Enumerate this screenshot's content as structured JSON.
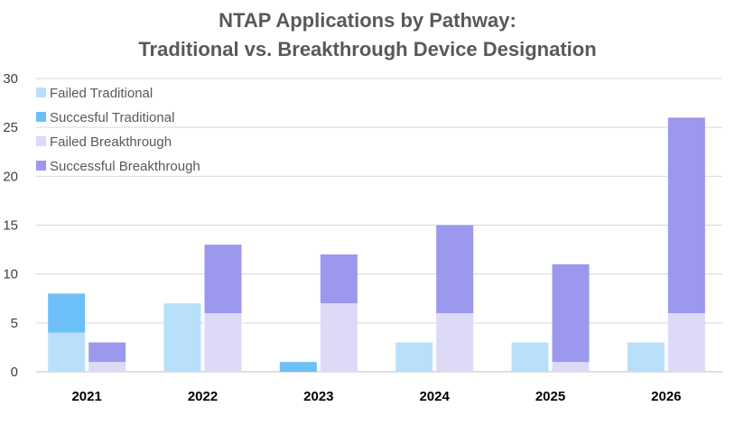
{
  "chart_data": {
    "type": "bar",
    "title": [
      "NTAP Applications by Pathway:",
      "Traditional vs. Breakthrough Device Designation"
    ],
    "categories": [
      "2021",
      "2022",
      "2023",
      "2024",
      "2025",
      "2026"
    ],
    "y_ticks": [
      "0",
      "5",
      "10",
      "15",
      "20",
      "25",
      "30"
    ],
    "ylim": [
      0,
      30
    ],
    "grid": true,
    "legend_position": "top-left",
    "stacks": [
      {
        "name": "Traditional",
        "series": [
          {
            "name": "Failed Traditional",
            "color": "#b8e0fb",
            "values": [
              4,
              7,
              0,
              3,
              3,
              3
            ]
          },
          {
            "name": "Succesful Traditional",
            "color": "#6cc0f7",
            "values": [
              4,
              0,
              1,
              0,
              0,
              0
            ]
          }
        ]
      },
      {
        "name": "Breakthrough",
        "series": [
          {
            "name": "Failed Breakthrough",
            "color": "#dcdaf7",
            "values": [
              1,
              6,
              7,
              6,
              1,
              6
            ]
          },
          {
            "name": "Successful Breakthrough",
            "color": "#9b98ee",
            "values": [
              2,
              7,
              5,
              9,
              10,
              20
            ]
          }
        ]
      }
    ]
  }
}
